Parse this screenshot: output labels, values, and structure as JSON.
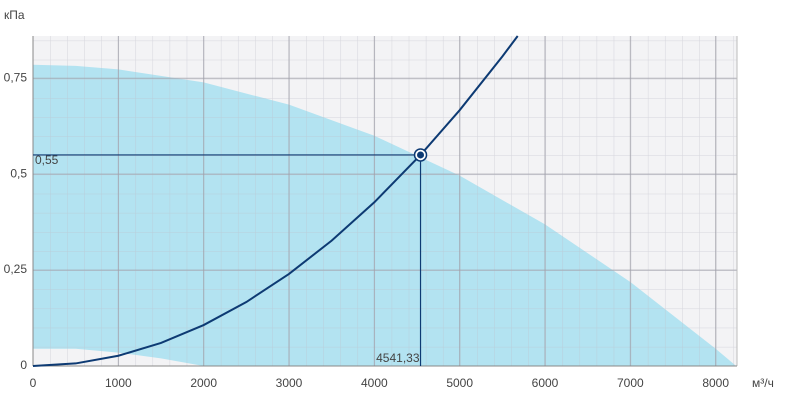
{
  "chart_data": {
    "type": "line",
    "y_label": "кПа",
    "x_label": "м³/ч",
    "xlim": [
      0,
      8250
    ],
    "ylim": [
      0,
      0.86
    ],
    "xticks": [
      0,
      1000,
      2000,
      3000,
      4000,
      5000,
      6000,
      7000,
      8000
    ],
    "yticks": [
      0,
      {
        "value": 0.25,
        "label": "0,25"
      },
      {
        "value": 0.5,
        "label": "0,5"
      },
      {
        "value": 0.75,
        "label": "0,75"
      }
    ],
    "grid": true,
    "areas": [
      {
        "color": "#b3e3f1",
        "x": [
          0,
          500,
          1000,
          2000,
          3000,
          4000,
          5000,
          6000,
          7000,
          8000,
          8240
        ],
        "values": [
          0.785,
          0.782,
          0.773,
          0.739,
          0.681,
          0.6,
          0.496,
          0.369,
          0.219,
          0.045,
          0
        ]
      },
      {
        "color": "#f3f3f5",
        "x": [
          0,
          500,
          1000,
          1500,
          2000
        ],
        "values": [
          0.045,
          0.045,
          0.035,
          0.02,
          0
        ]
      }
    ],
    "series": [
      {
        "color": "#0d3a73",
        "x": [
          0,
          500,
          1000,
          1500,
          2000,
          2500,
          3000,
          3500,
          4000,
          4541.33,
          5000,
          5500,
          5680
        ],
        "values": [
          0,
          0.0067,
          0.0267,
          0.06,
          0.1067,
          0.1667,
          0.24,
          0.3267,
          0.4267,
          0.55,
          0.6667,
          0.8067,
          0.86
        ]
      }
    ],
    "operating_point": {
      "x": 4541.33,
      "y": 0.55,
      "x_text": "4541,33",
      "y_text": "0,55",
      "color": "#0d3a73"
    }
  }
}
